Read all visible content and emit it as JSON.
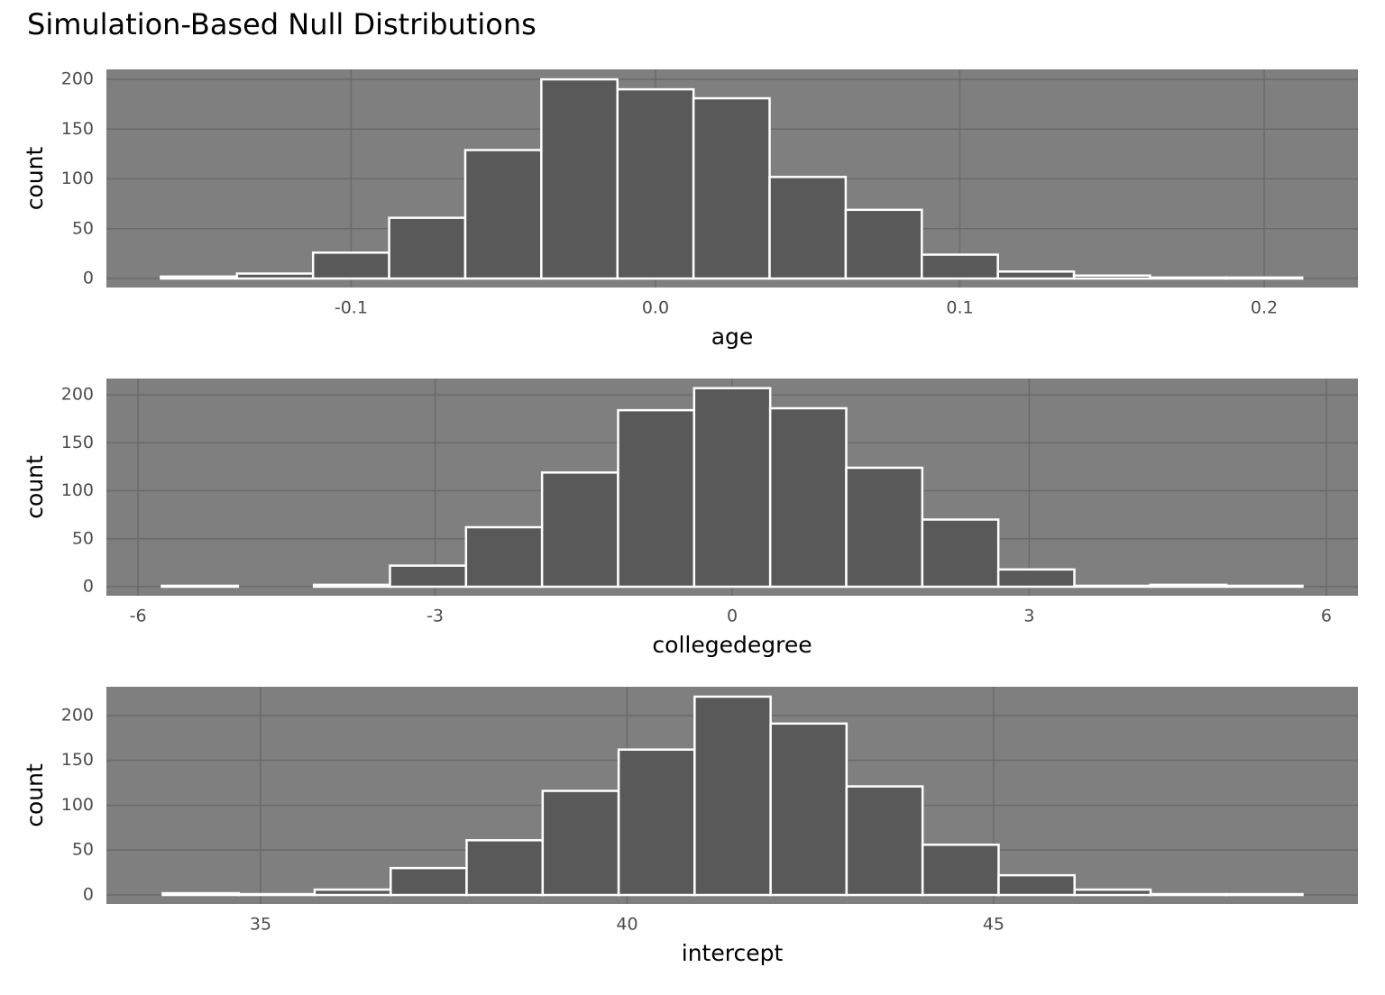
{
  "title": "Simulation-Based Null Distributions",
  "chart_data": [
    {
      "type": "histogram",
      "xlabel": "age",
      "ylabel": "count",
      "bins": [
        -0.1625,
        -0.1375,
        -0.1125,
        -0.0875,
        -0.0625,
        -0.0375,
        -0.0125,
        0.0125,
        0.0375,
        0.0625,
        0.0875,
        0.1125,
        0.1375,
        0.1625,
        0.1875,
        0.2125
      ],
      "counts": [
        2,
        5,
        26,
        61,
        129,
        200,
        190,
        181,
        102,
        69,
        24,
        7,
        3,
        1,
        1
      ],
      "color": "#595959",
      "xlim": [
        -0.1804,
        0.2308
      ],
      "ylim": [
        -9,
        210
      ],
      "xticks": [
        -0.1,
        {
          "value": 0,
          "label": "0.0"
        },
        0.1,
        0.2
      ],
      "yticks": [
        0,
        50,
        100,
        150,
        200
      ],
      "grid": true
    },
    {
      "type": "histogram",
      "xlabel": "collegedegree",
      "ylabel": "count",
      "bins": [
        -5.76,
        -4.992,
        -4.224,
        -3.456,
        -2.688,
        -1.92,
        -1.152,
        -0.384,
        0.384,
        1.152,
        1.92,
        2.688,
        3.456,
        4.224,
        4.992,
        5.76
      ],
      "counts": [
        1,
        0,
        2,
        22,
        62,
        119,
        184,
        207,
        186,
        124,
        70,
        18,
        1,
        2,
        1
      ],
      "color": "#595959",
      "xlim": [
        -6.32,
        6.32
      ],
      "ylim": [
        -9.4,
        217
      ],
      "xticks": [
        -6,
        -3,
        0,
        3,
        6
      ],
      "yticks": [
        0,
        50,
        100,
        150,
        200
      ],
      "grid": true
    },
    {
      "type": "histogram",
      "xlabel": "intercept",
      "ylabel": "count",
      "bins": [
        33.665,
        34.702,
        35.738,
        36.775,
        37.811,
        38.848,
        39.885,
        40.921,
        41.958,
        42.994,
        44.031,
        45.068,
        46.104,
        47.141,
        48.177,
        49.214
      ],
      "counts": [
        2,
        1,
        6,
        30,
        61,
        116,
        162,
        221,
        191,
        121,
        56,
        22,
        6,
        1,
        1
      ],
      "color": "#595959",
      "xlim": [
        32.897,
        49.97
      ],
      "ylim": [
        -10,
        232
      ],
      "xticks": [
        35,
        40,
        45
      ],
      "yticks": [
        0,
        50,
        100,
        150,
        200
      ],
      "grid": true
    }
  ]
}
